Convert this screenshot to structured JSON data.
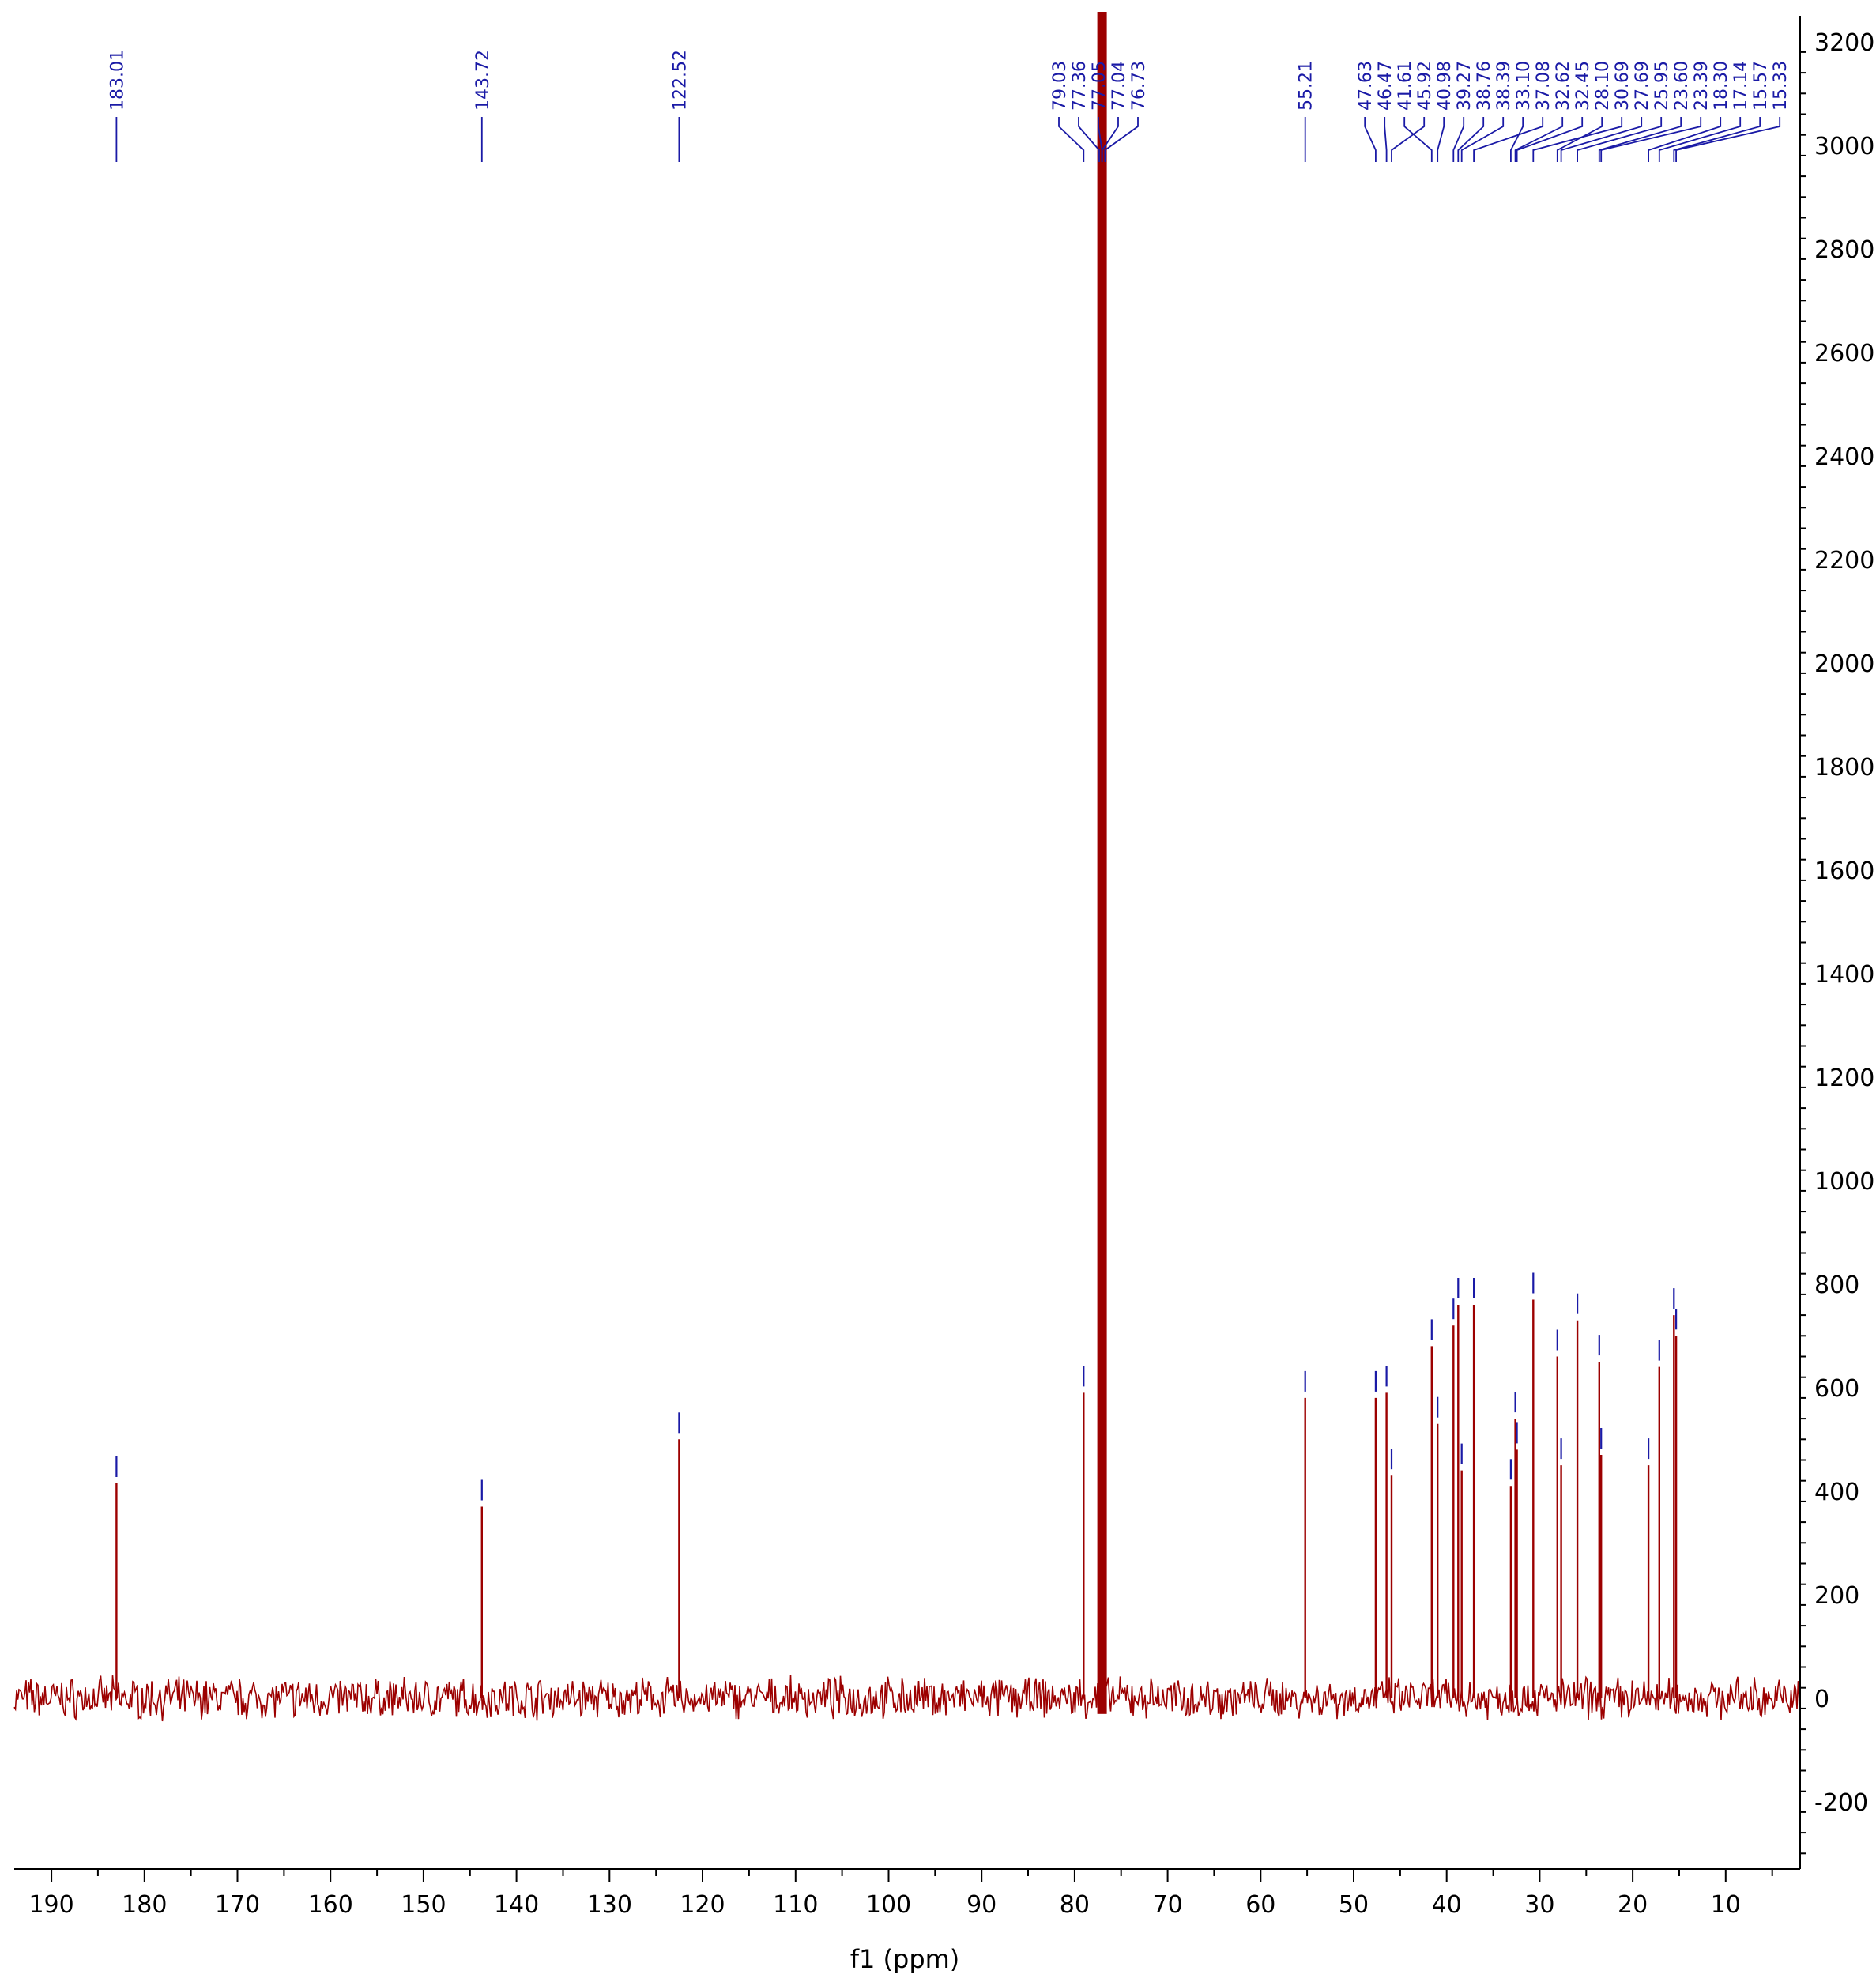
{
  "chart_data": {
    "type": "line",
    "title": "",
    "xlabel": "f1 (ppm)",
    "ylabel": "",
    "x_reversed": true,
    "xlim": [
      194,
      2
    ],
    "ylim": [
      -330,
      3250
    ],
    "x_ticks": [
      190,
      180,
      170,
      160,
      150,
      140,
      130,
      120,
      110,
      100,
      90,
      80,
      70,
      60,
      50,
      40,
      30,
      20,
      10
    ],
    "y_ticks": [
      3200,
      3000,
      2800,
      2600,
      2400,
      2200,
      2000,
      1800,
      1600,
      1400,
      1200,
      1000,
      800,
      600,
      400,
      200,
      0,
      -200
    ],
    "grid": false,
    "spectrum_color": "#9c0000",
    "label_color": "#1a1aa6",
    "noise_amplitude": 30,
    "solvent_peak": {
      "ppm": 77.05,
      "intensity": 3250
    },
    "peaks": [
      {
        "ppm": 183.01,
        "label": "183.01",
        "intensity": 415
      },
      {
        "ppm": 143.72,
        "label": "143.72",
        "intensity": 370
      },
      {
        "ppm": 122.52,
        "label": "122.52",
        "intensity": 500
      },
      {
        "ppm": 79.03,
        "label": "79.03",
        "intensity": 590
      },
      {
        "ppm": 77.36,
        "label": "77.36",
        "intensity": 3250
      },
      {
        "ppm": 77.05,
        "label": "77.05",
        "intensity": 3250
      },
      {
        "ppm": 77.04,
        "label": "77.04",
        "intensity": 3250
      },
      {
        "ppm": 76.73,
        "label": "76.73",
        "intensity": 3250
      },
      {
        "ppm": 55.21,
        "label": "55.21",
        "intensity": 580
      },
      {
        "ppm": 47.63,
        "label": "47.63",
        "intensity": 580
      },
      {
        "ppm": 46.47,
        "label": "46.47",
        "intensity": 590
      },
      {
        "ppm": 45.92,
        "label": "45.92",
        "intensity": 430
      },
      {
        "ppm": 41.61,
        "label": "41.61",
        "intensity": 680
      },
      {
        "ppm": 40.98,
        "label": "40.98",
        "intensity": 530
      },
      {
        "ppm": 39.27,
        "label": "39.27",
        "intensity": 720
      },
      {
        "ppm": 38.76,
        "label": "38.76",
        "intensity": 760
      },
      {
        "ppm": 38.39,
        "label": "38.39",
        "intensity": 440
      },
      {
        "ppm": 37.08,
        "label": "37.08",
        "intensity": 760
      },
      {
        "ppm": 33.1,
        "label": "33.10",
        "intensity": 410
      },
      {
        "ppm": 32.62,
        "label": "32.62",
        "intensity": 540
      },
      {
        "ppm": 32.45,
        "label": "32.45",
        "intensity": 480
      },
      {
        "ppm": 30.69,
        "label": "30.69",
        "intensity": 770
      },
      {
        "ppm": 28.1,
        "label": "28.10",
        "intensity": 660
      },
      {
        "ppm": 27.69,
        "label": "27.69",
        "intensity": 450
      },
      {
        "ppm": 25.95,
        "label": "25.95",
        "intensity": 730
      },
      {
        "ppm": 23.6,
        "label": "23.60",
        "intensity": 650
      },
      {
        "ppm": 23.39,
        "label": "23.39",
        "intensity": 470
      },
      {
        "ppm": 18.3,
        "label": "18.30",
        "intensity": 450
      },
      {
        "ppm": 17.14,
        "label": "17.14",
        "intensity": 640
      },
      {
        "ppm": 15.57,
        "label": "15.57",
        "intensity": 740
      },
      {
        "ppm": 15.33,
        "label": "15.33",
        "intensity": 700
      }
    ]
  }
}
